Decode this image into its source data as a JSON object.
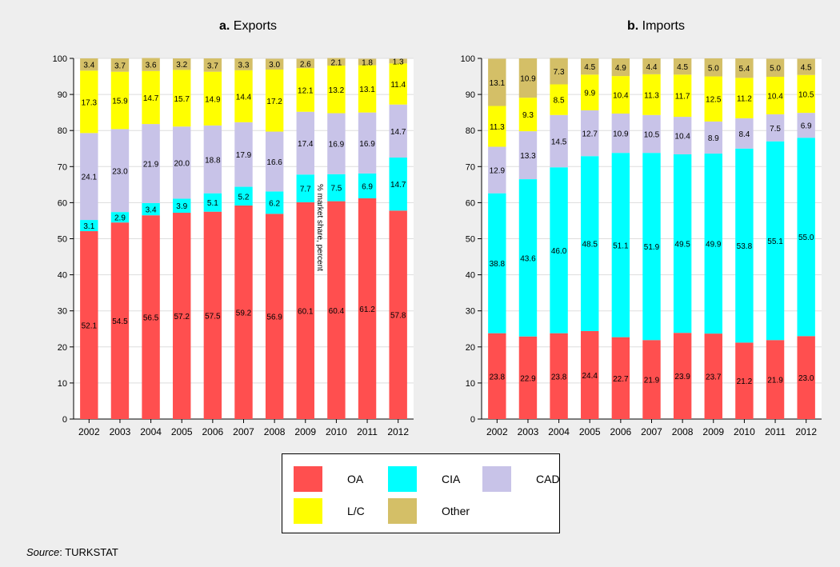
{
  "chart_data": [
    {
      "type": "bar",
      "stacked": true,
      "panel_letter": "a.",
      "title": "Exports",
      "categories": [
        "2002",
        "2003",
        "2004",
        "2005",
        "2006",
        "2007",
        "2008",
        "2009",
        "2010",
        "2011",
        "2012"
      ],
      "ylim": [
        0,
        100
      ],
      "yticks": [
        0,
        10,
        20,
        30,
        40,
        50,
        60,
        70,
        80,
        90,
        100
      ],
      "series": [
        {
          "name": "OA",
          "values": [
            52.1,
            54.5,
            56.5,
            57.2,
            57.5,
            59.2,
            56.9,
            60.1,
            60.4,
            61.2,
            57.8
          ]
        },
        {
          "name": "CIA",
          "values": [
            3.1,
            2.9,
            3.4,
            3.9,
            5.1,
            5.2,
            6.2,
            7.7,
            7.5,
            6.9,
            14.7
          ]
        },
        {
          "name": "CAD",
          "values": [
            24.1,
            23.0,
            21.9,
            20.0,
            18.8,
            17.9,
            16.6,
            17.4,
            16.9,
            16.9,
            14.7
          ]
        },
        {
          "name": "L/C",
          "values": [
            17.3,
            15.9,
            14.7,
            15.7,
            14.9,
            14.4,
            17.2,
            12.1,
            13.2,
            13.1,
            11.4
          ]
        },
        {
          "name": "Other",
          "values": [
            3.4,
            3.7,
            3.6,
            3.2,
            3.7,
            3.3,
            3.0,
            2.6,
            2.1,
            1.8,
            1.3
          ]
        }
      ],
      "grid": true
    },
    {
      "type": "bar",
      "stacked": true,
      "panel_letter": "b.",
      "title": "Imports",
      "categories": [
        "2002",
        "2003",
        "2004",
        "2005",
        "2006",
        "2007",
        "2008",
        "2009",
        "2010",
        "2011",
        "2012"
      ],
      "ylim": [
        0,
        100
      ],
      "yticks": [
        0,
        10,
        20,
        30,
        40,
        50,
        60,
        70,
        80,
        90,
        100
      ],
      "series": [
        {
          "name": "OA",
          "values": [
            23.8,
            22.9,
            23.8,
            24.4,
            22.7,
            21.9,
            23.9,
            23.7,
            21.2,
            21.9,
            23.0
          ]
        },
        {
          "name": "CIA",
          "values": [
            38.8,
            43.6,
            46.0,
            48.5,
            51.1,
            51.9,
            49.5,
            49.9,
            53.8,
            55.1,
            55.0
          ]
        },
        {
          "name": "CAD",
          "values": [
            12.9,
            13.3,
            14.5,
            12.7,
            10.9,
            10.5,
            10.4,
            8.9,
            8.4,
            7.5,
            6.9
          ]
        },
        {
          "name": "L/C",
          "values": [
            11.3,
            9.3,
            8.5,
            9.9,
            10.4,
            11.3,
            11.7,
            12.5,
            11.2,
            10.4,
            10.5
          ]
        },
        {
          "name": "Other",
          "values": [
            13.1,
            10.9,
            7.3,
            4.5,
            4.9,
            4.4,
            4.5,
            5.0,
            5.4,
            5.0,
            4.5
          ]
        }
      ],
      "grid": true
    }
  ],
  "colors": {
    "OA": "#ff4f4f",
    "CIA": "#00ffff",
    "CAD": "#c8c3e8",
    "L/C": "#ffff00",
    "Other": "#d4bf67",
    "grid": "#dddddd"
  },
  "legend": {
    "placement": "bottom-center",
    "items": [
      {
        "label": "OA"
      },
      {
        "label": "CIA"
      },
      {
        "label": "CAD"
      },
      {
        "label": "L/C"
      },
      {
        "label": "Other"
      }
    ]
  },
  "source": {
    "prefix": "Source",
    "text": ": TURKSTAT"
  },
  "vertical_note": "% market share, percent"
}
